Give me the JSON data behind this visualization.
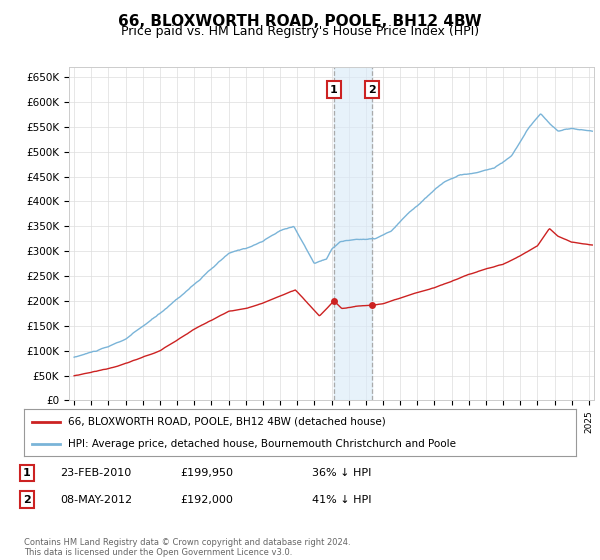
{
  "title": "66, BLOXWORTH ROAD, POOLE, BH12 4BW",
  "subtitle": "Price paid vs. HM Land Registry's House Price Index (HPI)",
  "title_fontsize": 11,
  "subtitle_fontsize": 9,
  "ylabel_ticks": [
    "£0",
    "£50K",
    "£100K",
    "£150K",
    "£200K",
    "£250K",
    "£300K",
    "£350K",
    "£400K",
    "£450K",
    "£500K",
    "£550K",
    "£600K",
    "£650K"
  ],
  "ytick_values": [
    0,
    50000,
    100000,
    150000,
    200000,
    250000,
    300000,
    350000,
    400000,
    450000,
    500000,
    550000,
    600000,
    650000
  ],
  "ylim": [
    0,
    670000
  ],
  "xlim_start": 1994.7,
  "xlim_end": 2025.3,
  "purchase1_date": 2010.13,
  "purchase1_price": 199950,
  "purchase1_label": "1",
  "purchase2_date": 2012.35,
  "purchase2_price": 192000,
  "purchase2_label": "2",
  "legend_line1": "66, BLOXWORTH ROAD, POOLE, BH12 4BW (detached house)",
  "legend_line2": "HPI: Average price, detached house, Bournemouth Christchurch and Poole",
  "table_row1": [
    "1",
    "23-FEB-2010",
    "£199,950",
    "36% ↓ HPI"
  ],
  "table_row2": [
    "2",
    "08-MAY-2012",
    "£192,000",
    "41% ↓ HPI"
  ],
  "footnote": "Contains HM Land Registry data © Crown copyright and database right 2024.\nThis data is licensed under the Open Government Licence v3.0.",
  "hpi_color": "#7ab4d8",
  "price_color": "#cc2222",
  "grid_color": "#dddddd",
  "background_color": "#ffffff",
  "shade_color": "#d8eaf8",
  "box_color": "#cc2222"
}
